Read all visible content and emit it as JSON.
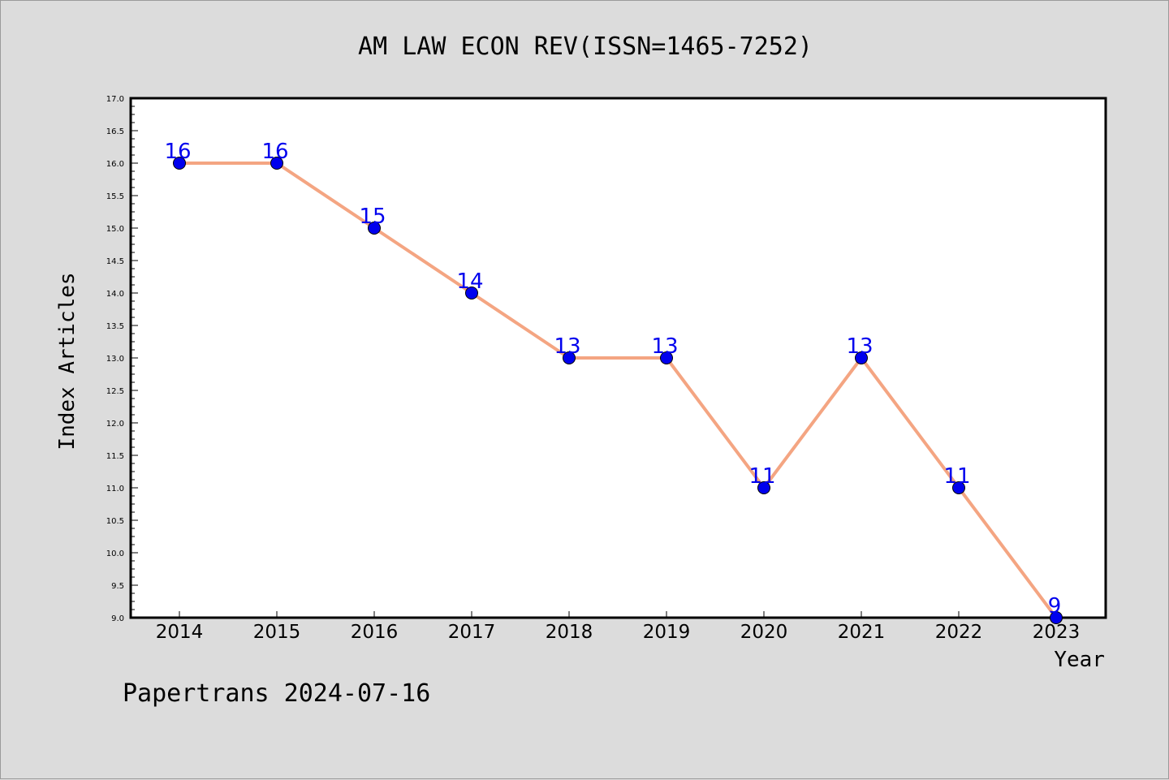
{
  "chart_data": {
    "type": "line",
    "title": "AM LAW ECON REV(ISSN=1465-7252)",
    "xlabel": "Year",
    "ylabel": "Index Articles",
    "categories": [
      "2014",
      "2015",
      "2016",
      "2017",
      "2018",
      "2019",
      "2020",
      "2021",
      "2022",
      "2023"
    ],
    "series": [
      {
        "values": [
          16,
          16,
          15,
          14,
          13,
          13,
          11,
          13,
          11,
          9
        ]
      }
    ],
    "data_labels": [
      "16",
      "16",
      "15",
      "14",
      "13",
      "13",
      "11",
      "13",
      "11",
      "9"
    ],
    "ylim": [
      9.0,
      17.0
    ],
    "yticks": [
      "9.0",
      "9.5",
      "10.0",
      "10.5",
      "11.0",
      "11.5",
      "12.0",
      "12.5",
      "13.0",
      "13.5",
      "14.0",
      "14.5",
      "15.0",
      "15.5",
      "16.0",
      "16.5",
      "17.0"
    ],
    "grid": false,
    "colors": {
      "line": "#f4a582",
      "marker": "#0000ee",
      "marker_edge": "#000000",
      "label": "#0000ee",
      "background": "#dcdcdc",
      "plot_bg": "#ffffff"
    }
  },
  "footer": "Papertrans 2024-07-16"
}
